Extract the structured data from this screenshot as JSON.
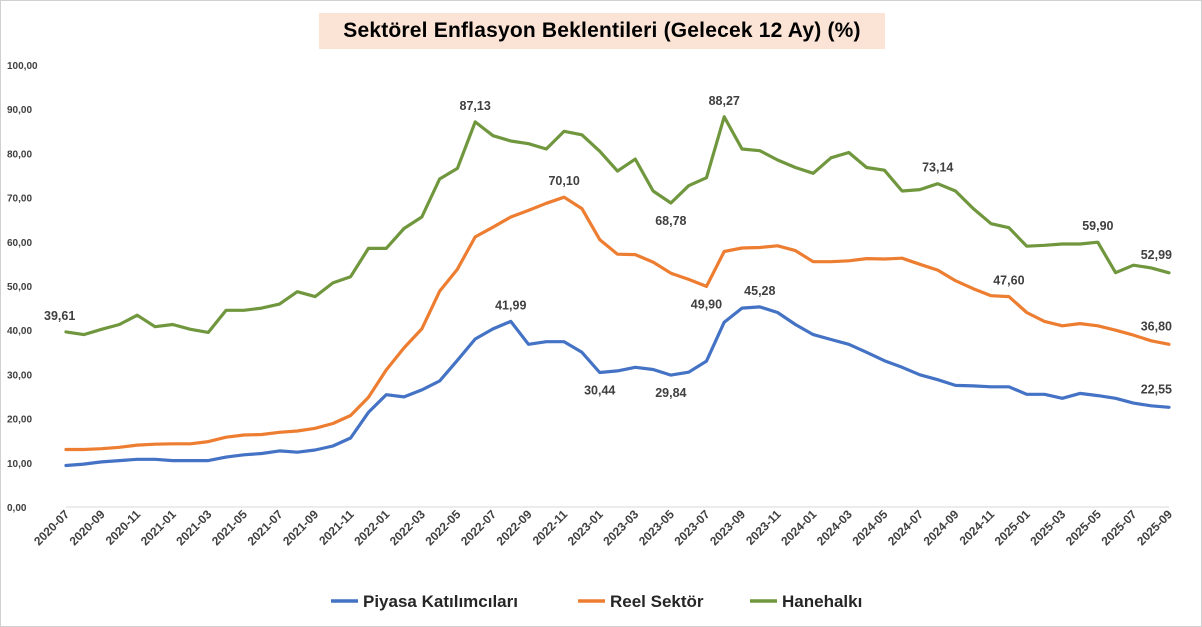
{
  "chart_data": {
    "type": "line",
    "title": "Sektörel Enflasyon Beklentileri (Gelecek 12 Ay) (%)",
    "xlabel": "",
    "ylabel": "",
    "ylim": [
      0,
      100
    ],
    "y_ticks": [
      "0,00",
      "10,00",
      "20,00",
      "30,00",
      "40,00",
      "50,00",
      "60,00",
      "70,00",
      "80,00",
      "90,00",
      "100,00"
    ],
    "grid": false,
    "legend_position": "bottom",
    "x_tick_labels": [
      "2020-07",
      "2020-09",
      "2020-11",
      "2021-01",
      "2021-03",
      "2021-05",
      "2021-07",
      "2021-09",
      "2021-11",
      "2022-01",
      "2022-03",
      "2022-05",
      "2022-07",
      "2022-09",
      "2022-11",
      "2023-01",
      "2023-03",
      "2023-05",
      "2023-07",
      "2023-09",
      "2023-11",
      "2024-01",
      "2024-03",
      "2024-05",
      "2024-07",
      "2024-09",
      "2024-11",
      "2025-01",
      "2025-03",
      "2025-05",
      "2025-07",
      "2025-09"
    ],
    "x": [
      "2020-07",
      "2020-08",
      "2020-09",
      "2020-10",
      "2020-11",
      "2020-12",
      "2021-01",
      "2021-02",
      "2021-03",
      "2021-04",
      "2021-05",
      "2021-06",
      "2021-07",
      "2021-08",
      "2021-09",
      "2021-10",
      "2021-11",
      "2021-12",
      "2022-01",
      "2022-02",
      "2022-03",
      "2022-04",
      "2022-05",
      "2022-06",
      "2022-07",
      "2022-08",
      "2022-09",
      "2022-10",
      "2022-11",
      "2022-12",
      "2023-01",
      "2023-02",
      "2023-03",
      "2023-04",
      "2023-05",
      "2023-06",
      "2023-07",
      "2023-08",
      "2023-09",
      "2023-10",
      "2023-11",
      "2023-12",
      "2024-01",
      "2024-02",
      "2024-03",
      "2024-04",
      "2024-05",
      "2024-06",
      "2024-07",
      "2024-08",
      "2024-09",
      "2024-10",
      "2024-11",
      "2024-12",
      "2025-01",
      "2025-02",
      "2025-03",
      "2025-04",
      "2025-05",
      "2025-06",
      "2025-07",
      "2025-08",
      "2025-09"
    ],
    "series": [
      {
        "name": "Piyasa Katılımcıları",
        "color": "#4472c4",
        "values": [
          9.4,
          9.7,
          10.2,
          10.5,
          10.8,
          10.8,
          10.5,
          10.5,
          10.5,
          11.3,
          11.8,
          12.1,
          12.7,
          12.4,
          12.9,
          13.8,
          15.6,
          21.4,
          25.4,
          24.9,
          26.5,
          28.5,
          33.2,
          38.0,
          40.3,
          41.99,
          36.8,
          37.4,
          37.4,
          35.0,
          30.44,
          30.8,
          31.6,
          31.1,
          29.84,
          30.5,
          33.0,
          41.8,
          45.0,
          45.28,
          44.0,
          41.3,
          39.0,
          37.9,
          36.8,
          35.0,
          33.1,
          31.6,
          29.9,
          28.8,
          27.5,
          27.4,
          27.2,
          27.2,
          25.5,
          25.5,
          24.6,
          25.7,
          25.2,
          24.6,
          23.5,
          22.9,
          22.55
        ]
      },
      {
        "name": "Reel Sektör",
        "color": "#ed7d31",
        "values": [
          13.0,
          13.0,
          13.2,
          13.5,
          14.0,
          14.2,
          14.3,
          14.3,
          14.8,
          15.8,
          16.3,
          16.4,
          16.9,
          17.2,
          17.8,
          18.9,
          20.7,
          24.8,
          31.0,
          36.0,
          40.3,
          48.8,
          53.8,
          61.1,
          63.3,
          65.6,
          67.1,
          68.7,
          70.1,
          67.5,
          60.5,
          57.2,
          57.1,
          55.4,
          52.9,
          51.5,
          49.9,
          57.8,
          58.6,
          58.7,
          59.1,
          58.0,
          55.5,
          55.5,
          55.7,
          56.2,
          56.1,
          56.3,
          54.9,
          53.6,
          51.2,
          49.4,
          47.8,
          47.6,
          44.0,
          42.0,
          41.0,
          41.5,
          41.0,
          40.0,
          38.9,
          37.6,
          36.8
        ]
      },
      {
        "name": "Hanehalkı",
        "color": "#70973e",
        "values": [
          39.61,
          39.0,
          40.2,
          41.3,
          43.4,
          40.8,
          41.3,
          40.2,
          39.5,
          44.5,
          44.5,
          45.0,
          45.9,
          48.7,
          47.6,
          50.7,
          52.1,
          58.5,
          58.5,
          63.0,
          65.6,
          74.2,
          76.6,
          87.13,
          84.0,
          82.8,
          82.2,
          81.0,
          85.0,
          84.2,
          80.5,
          76.0,
          78.7,
          71.5,
          68.78,
          72.7,
          74.5,
          88.27,
          81.0,
          80.6,
          78.5,
          76.8,
          75.5,
          79.0,
          80.2,
          76.8,
          76.2,
          71.5,
          71.8,
          73.14,
          71.5,
          67.5,
          64.1,
          63.2,
          59.0,
          59.2,
          59.5,
          59.5,
          59.9,
          53.0,
          54.7,
          54.1,
          52.99
        ]
      }
    ],
    "data_labels": [
      {
        "series": 0,
        "index": 25,
        "text": "41,99"
      },
      {
        "series": 0,
        "index": 30,
        "text": "30,44"
      },
      {
        "series": 0,
        "index": 34,
        "text": "29,84"
      },
      {
        "series": 0,
        "index": 39,
        "text": "45,28"
      },
      {
        "series": 0,
        "index": 62,
        "text": "22,55"
      },
      {
        "series": 1,
        "index": 28,
        "text": "70,10"
      },
      {
        "series": 1,
        "index": 36,
        "text": "49,90"
      },
      {
        "series": 1,
        "index": 53,
        "text": "47,60"
      },
      {
        "series": 1,
        "index": 62,
        "text": "36,80"
      },
      {
        "series": 2,
        "index": 0,
        "text": "39,61"
      },
      {
        "series": 2,
        "index": 23,
        "text": "87,13"
      },
      {
        "series": 2,
        "index": 34,
        "text": "68,78"
      },
      {
        "series": 2,
        "index": 37,
        "text": "88,27"
      },
      {
        "series": 2,
        "index": 49,
        "text": "73,14"
      },
      {
        "series": 2,
        "index": 58,
        "text": "59,90"
      },
      {
        "series": 2,
        "index": 62,
        "text": "52,99"
      }
    ]
  }
}
